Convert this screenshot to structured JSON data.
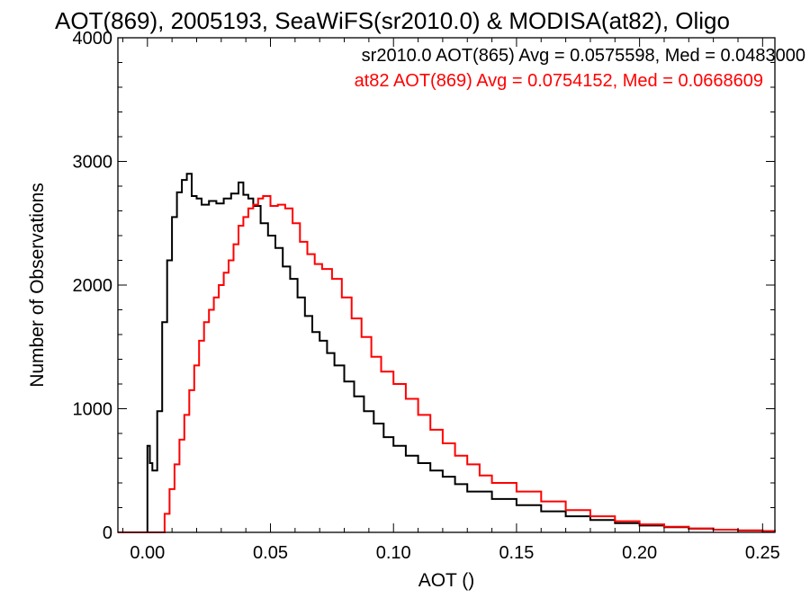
{
  "chart_data": {
    "type": "line",
    "style": "step-histogram",
    "title": "AOT(869), 2005193, SeaWiFS(sr2010.0) & MODISA(at82), Oligo",
    "xlabel": "AOT ()",
    "ylabel": "Number of Observations",
    "xlim": [
      -0.012,
      0.255
    ],
    "ylim": [
      0,
      4000
    ],
    "xticks": [
      "0.00",
      "0.05",
      "0.10",
      "0.15",
      "0.20",
      "0.25"
    ],
    "yticks": [
      "0",
      "1000",
      "2000",
      "3000",
      "4000"
    ],
    "grid": false,
    "legend_position": "top-right",
    "legend": [
      "sr2010.0 AOT(865) Avg = 0.0575598, Med = 0.0483000",
      "at82 AOT(869) Avg = 0.0754152, Med = 0.0668609"
    ],
    "series": [
      {
        "color": "#000000",
        "x": [
          -0.012,
          -0.001,
          0.0,
          0.001,
          0.002,
          0.004,
          0.006,
          0.008,
          0.01,
          0.012,
          0.014,
          0.016,
          0.018,
          0.02,
          0.022,
          0.025,
          0.028,
          0.031,
          0.034,
          0.037,
          0.039,
          0.041,
          0.043,
          0.046,
          0.049,
          0.052,
          0.055,
          0.058,
          0.061,
          0.064,
          0.067,
          0.07,
          0.073,
          0.076,
          0.08,
          0.084,
          0.088,
          0.092,
          0.096,
          0.1,
          0.105,
          0.11,
          0.115,
          0.12,
          0.125,
          0.13,
          0.14,
          0.15,
          0.16,
          0.17,
          0.18,
          0.19,
          0.2,
          0.21,
          0.22,
          0.23,
          0.24,
          0.25,
          0.255
        ],
        "y": [
          0,
          0,
          700,
          560,
          500,
          980,
          1700,
          2200,
          2550,
          2750,
          2850,
          2900,
          2720,
          2700,
          2650,
          2680,
          2660,
          2700,
          2740,
          2830,
          2730,
          2700,
          2640,
          2500,
          2400,
          2300,
          2150,
          2050,
          1900,
          1750,
          1620,
          1550,
          1450,
          1350,
          1220,
          1100,
          980,
          880,
          770,
          700,
          620,
          560,
          500,
          450,
          390,
          330,
          270,
          220,
          170,
          130,
          100,
          75,
          55,
          42,
          30,
          22,
          15,
          10,
          8
        ]
      },
      {
        "color": "#ff0000",
        "x": [
          -0.012,
          0.005,
          0.007,
          0.009,
          0.011,
          0.013,
          0.015,
          0.017,
          0.019,
          0.021,
          0.023,
          0.025,
          0.027,
          0.029,
          0.031,
          0.033,
          0.035,
          0.037,
          0.039,
          0.041,
          0.043,
          0.045,
          0.047,
          0.05,
          0.053,
          0.056,
          0.059,
          0.062,
          0.065,
          0.068,
          0.071,
          0.075,
          0.079,
          0.083,
          0.087,
          0.091,
          0.095,
          0.1,
          0.105,
          0.11,
          0.115,
          0.12,
          0.125,
          0.13,
          0.135,
          0.14,
          0.15,
          0.16,
          0.17,
          0.18,
          0.19,
          0.2,
          0.21,
          0.22,
          0.23,
          0.24,
          0.25,
          0.255
        ],
        "y": [
          0,
          0,
          150,
          350,
          550,
          750,
          950,
          1150,
          1350,
          1550,
          1700,
          1800,
          1900,
          2000,
          2100,
          2200,
          2330,
          2480,
          2550,
          2620,
          2650,
          2700,
          2720,
          2640,
          2650,
          2620,
          2500,
          2350,
          2250,
          2170,
          2130,
          2050,
          1900,
          1730,
          1580,
          1420,
          1300,
          1200,
          1080,
          950,
          830,
          720,
          620,
          550,
          460,
          400,
          330,
          250,
          180,
          130,
          90,
          65,
          45,
          32,
          22,
          15,
          10,
          6
        ]
      }
    ]
  }
}
